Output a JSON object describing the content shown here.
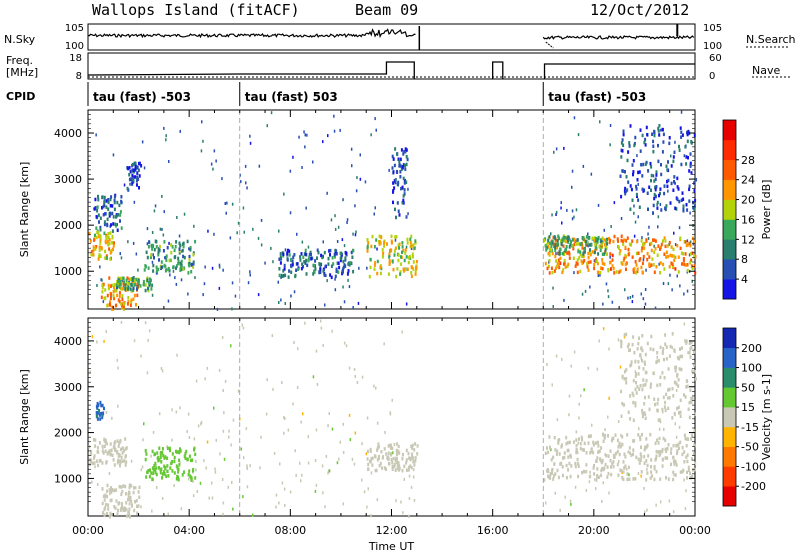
{
  "header": {
    "station": "Wallops Island (fitACF)",
    "beam": "Beam 09",
    "date": "12/Oct/2012"
  },
  "top_panels": {
    "nsky_label": "N.Sky",
    "nsearch_label": "N.Search",
    "freq_label_line1": "Freq.",
    "freq_label_line2": "[MHz]",
    "nave_label": "Nave",
    "cpid_label": "CPID",
    "nsky_ticks": [
      "10^5",
      "10^0"
    ],
    "nsearch_ticks": [
      "10^5",
      "10^0"
    ],
    "freq_ticks": [
      "18",
      "8"
    ],
    "nave_ticks": [
      "60",
      "0"
    ],
    "cpid_segments": [
      {
        "label": "tau (fast) -503",
        "start_hour": 0
      },
      {
        "label": "tau (fast) 503",
        "start_hour": 6
      },
      {
        "label": "tau (fast) -503",
        "start_hour": 18
      }
    ]
  },
  "chart_data": [
    {
      "type": "heatmap",
      "name": "power",
      "ylabel": "Slant Range [km]",
      "xlabel": "",
      "ylim": [
        180,
        4500
      ],
      "yticks": [
        "1000",
        "2000",
        "3000",
        "4000"
      ],
      "colorbar_label": "Power [dB]",
      "colorbar_ticks": [
        "4",
        "8",
        "12",
        "16",
        "20",
        "24",
        "28"
      ],
      "colorbar_colors": [
        "#1414e6",
        "#2850b4",
        "#2a7e6e",
        "#3aa85a",
        "#b4d20a",
        "#ff9600",
        "#ff5a00",
        "#ff2a00",
        "#e60000"
      ],
      "patches": [
        {
          "t0": 0.0,
          "t1": 1.0,
          "r0": 1300,
          "r1": 1900,
          "v": 18
        },
        {
          "t0": 0.2,
          "t1": 1.3,
          "r0": 1900,
          "r1": 2700,
          "v": 7
        },
        {
          "t0": 0.5,
          "t1": 2.0,
          "r0": 180,
          "r1": 900,
          "v": 20
        },
        {
          "t0": 1.0,
          "t1": 2.5,
          "r0": 600,
          "r1": 900,
          "v": 11
        },
        {
          "t0": 1.5,
          "t1": 2.1,
          "r0": 2800,
          "r1": 3400,
          "v": 5
        },
        {
          "t0": 2.2,
          "t1": 4.2,
          "r0": 1000,
          "r1": 1700,
          "v": 11
        },
        {
          "t0": 7.5,
          "t1": 10.5,
          "r0": 900,
          "r1": 1500,
          "v": 7
        },
        {
          "t0": 11.0,
          "t1": 13.0,
          "r0": 900,
          "r1": 1800,
          "v": 16
        },
        {
          "t0": 12.0,
          "t1": 12.6,
          "r0": 2200,
          "r1": 3700,
          "v": 5
        },
        {
          "t0": 18.0,
          "t1": 24.0,
          "r0": 1000,
          "r1": 1800,
          "v": 20
        },
        {
          "t0": 18.0,
          "t1": 20.5,
          "r0": 1400,
          "r1": 1800,
          "v": 12
        },
        {
          "t0": 21.0,
          "t1": 24.0,
          "r0": 2300,
          "r1": 4200,
          "v": 5
        }
      ]
    },
    {
      "type": "heatmap",
      "name": "velocity",
      "ylabel": "Slant Range [km]",
      "xlabel": "Time UT",
      "ylim": [
        180,
        4500
      ],
      "yticks": [
        "1000",
        "2000",
        "3000",
        "4000"
      ],
      "xticks": [
        "00:00",
        "04:00",
        "08:00",
        "12:00",
        "16:00",
        "20:00",
        "00:00"
      ],
      "colorbar_label": "Velocity [m s^-1]",
      "colorbar_ticks": [
        "200",
        "100",
        "50",
        "15",
        "-15",
        "-50",
        "-100",
        "-200"
      ],
      "colorbar_colors": [
        "#1428b4",
        "#2864c8",
        "#2a8c6a",
        "#64c832",
        "#c8c8b4",
        "#ffb400",
        "#ff7800",
        "#ff3c00",
        "#e60000"
      ],
      "patches": [
        {
          "t0": 0.0,
          "t1": 1.5,
          "r0": 1300,
          "r1": 1900,
          "v": 0
        },
        {
          "t0": 0.5,
          "t1": 2.0,
          "r0": 180,
          "r1": 900,
          "v": 0
        },
        {
          "t0": 2.2,
          "t1": 4.2,
          "r0": 1000,
          "r1": 1700,
          "v": 60
        },
        {
          "t0": 0.3,
          "t1": 0.6,
          "r0": 2300,
          "r1": 2700,
          "v": 150
        },
        {
          "t0": 11.0,
          "t1": 13.0,
          "r0": 1200,
          "r1": 1800,
          "v": 0
        },
        {
          "t0": 18.0,
          "t1": 24.0,
          "r0": 1000,
          "r1": 2000,
          "v": 0
        },
        {
          "t0": 21.0,
          "t1": 24.0,
          "r0": 2300,
          "r1": 4200,
          "v": 5
        }
      ]
    }
  ]
}
